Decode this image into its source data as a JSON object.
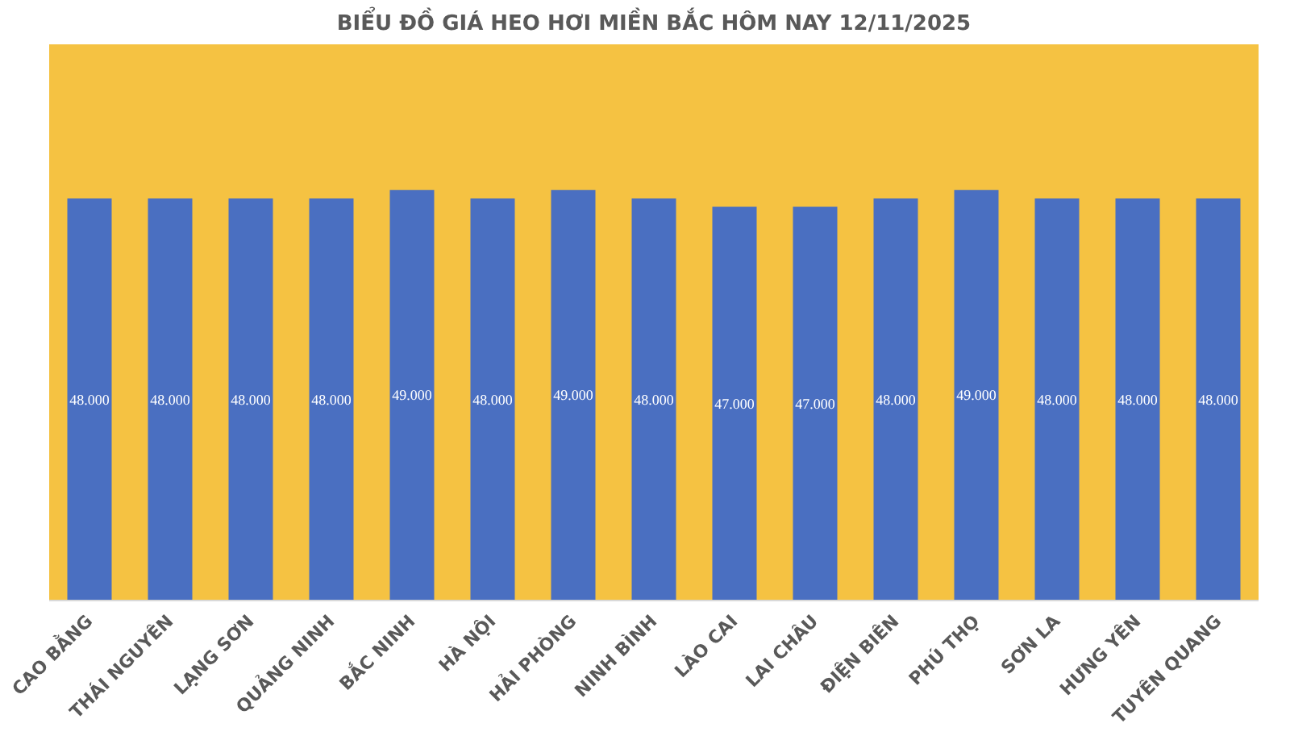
{
  "chart_data": {
    "type": "bar",
    "title": "BIỂU ĐỒ GIÁ HEO HƠI MIỀN BẮC HÔM NAY 12/11/2025",
    "categories": [
      "CAO BẰNG",
      "THÁI NGUYÊN",
      "LẠNG SƠN",
      "QUẢNG NINH",
      "BẮC NINH",
      "HÀ NỘI",
      "HẢI PHÒNG",
      "NINH BÌNH",
      "LÀO CAI",
      "LAI CHÂU",
      "ĐIỆN BIÊN",
      "PHÚ THỌ",
      "SƠN LA",
      "HƯNG YÊN",
      "TUYÊN QUANG"
    ],
    "values": [
      48000,
      48000,
      48000,
      48000,
      49000,
      48000,
      49000,
      48000,
      47000,
      47000,
      48000,
      49000,
      48000,
      48000,
      48000
    ],
    "value_labels": [
      "48.000",
      "48.000",
      "48.000",
      "48.000",
      "49.000",
      "48.000",
      "49.000",
      "48.000",
      "47.000",
      "47.000",
      "48.000",
      "49.000",
      "48.000",
      "48.000",
      "48.000"
    ],
    "color": "#4a6fc1"
  }
}
